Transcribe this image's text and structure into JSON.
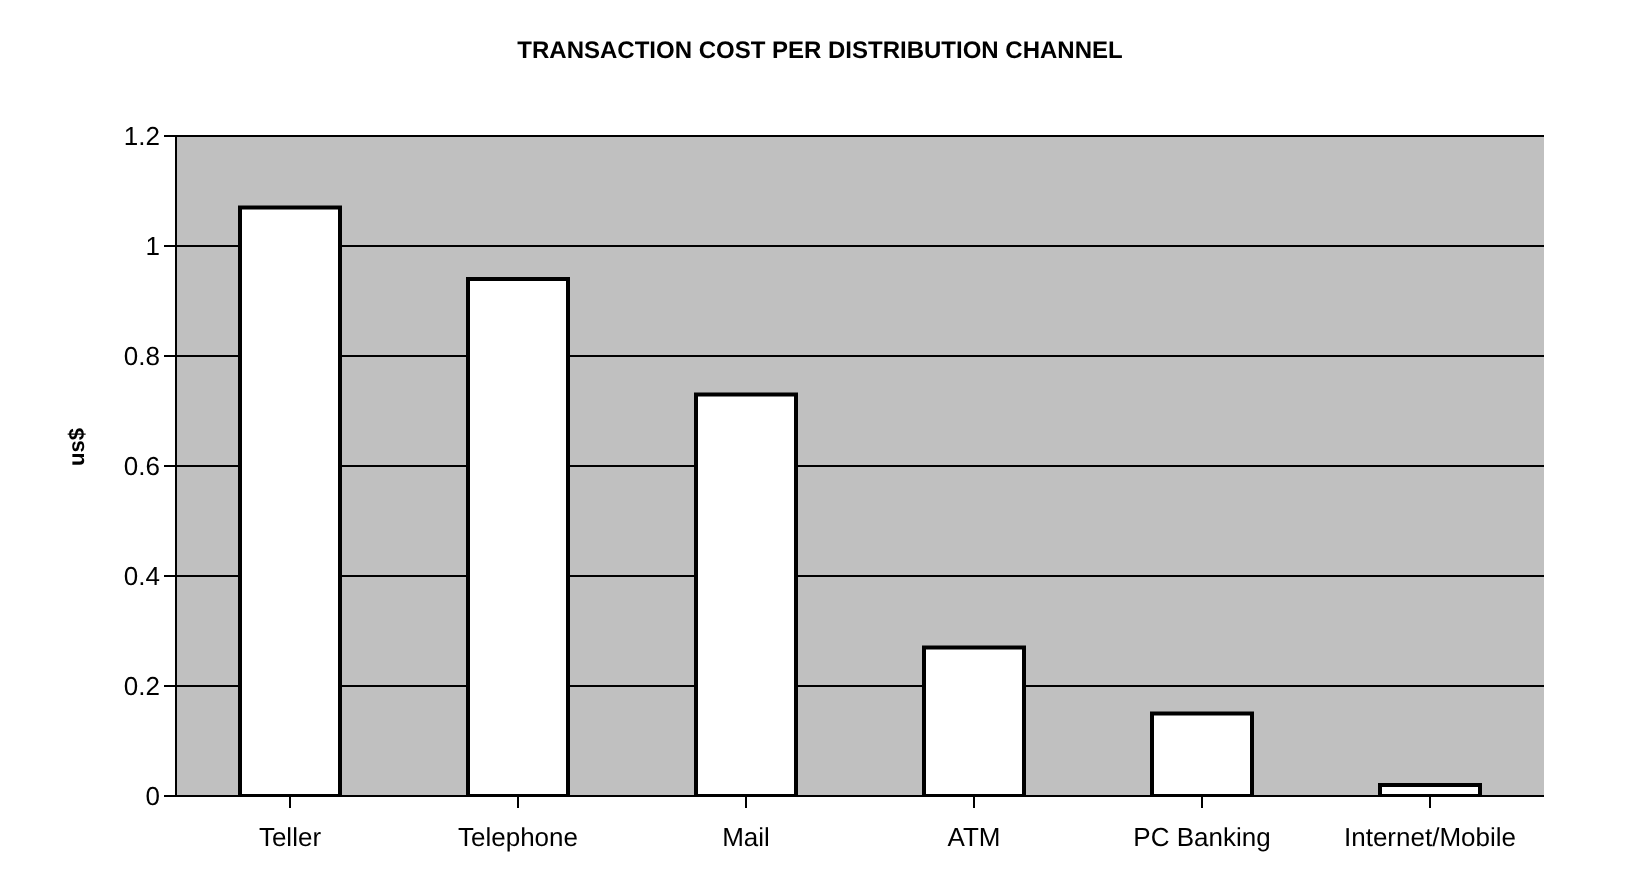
{
  "chart_data": {
    "type": "bar",
    "title": "TRANSACTION COST PER DISTRIBUTION CHANNEL",
    "ylabel": "us$",
    "categories": [
      "Teller",
      "Telephone",
      "Mail",
      "ATM",
      "PC Banking",
      "Internet/Mobile"
    ],
    "values": [
      1.07,
      0.94,
      0.73,
      0.27,
      0.15,
      0.02
    ],
    "color": "#ffffff",
    "ylim": [
      0,
      1.2
    ],
    "yticks": [
      0,
      0.2,
      0.4,
      0.6,
      0.8,
      1,
      1.2
    ],
    "grid": "y"
  }
}
